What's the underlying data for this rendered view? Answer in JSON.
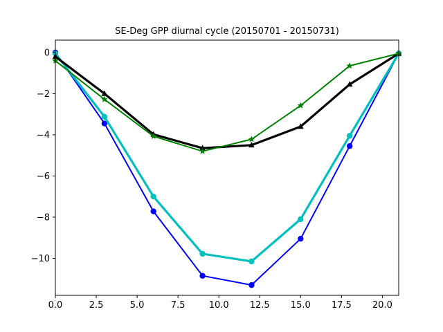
{
  "chart_data": {
    "type": "line",
    "title": "SE-Deg GPP diurnal cycle (20150701 - 20150731)",
    "xlabel": "",
    "ylabel": "",
    "xlim": [
      0,
      21
    ],
    "ylim": [
      -11.8,
      0.6
    ],
    "grid": false,
    "x": [
      0,
      3,
      6,
      9,
      12,
      15,
      18,
      21
    ],
    "xticks": [
      0.0,
      2.5,
      5.0,
      7.5,
      10.0,
      12.5,
      15.0,
      17.5,
      20.0
    ],
    "xtick_labels": [
      "0.0",
      "2.5",
      "5.0",
      "7.5",
      "10.0",
      "12.5",
      "15.0",
      "17.5",
      "20.0"
    ],
    "yticks": [
      0,
      -2,
      -4,
      -6,
      -8,
      -10
    ],
    "ytick_labels": [
      "0",
      "−2",
      "−4",
      "−6",
      "−8",
      "−10"
    ],
    "series": [
      {
        "values": [
          0.0,
          -3.45,
          -7.72,
          -10.85,
          -11.3,
          -9.05,
          -4.55,
          -0.05
        ],
        "color": "#0000ff",
        "marker": "circle",
        "thick": false
      },
      {
        "values": [
          -0.05,
          -3.12,
          -7.0,
          -9.78,
          -10.15,
          -8.1,
          -4.05,
          -0.05
        ],
        "color": "#00bfbf",
        "marker": "circle",
        "thick": true
      },
      {
        "values": [
          -0.2,
          -2.0,
          -3.98,
          -4.65,
          -4.5,
          -3.6,
          -1.55,
          -0.05
        ],
        "color": "#000000",
        "marker": "triangle",
        "thick": true
      },
      {
        "values": [
          -0.4,
          -2.28,
          -4.07,
          -4.8,
          -4.22,
          -2.58,
          -0.65,
          -0.05
        ],
        "color": "#008000",
        "marker": "star",
        "thick": false
      }
    ]
  }
}
